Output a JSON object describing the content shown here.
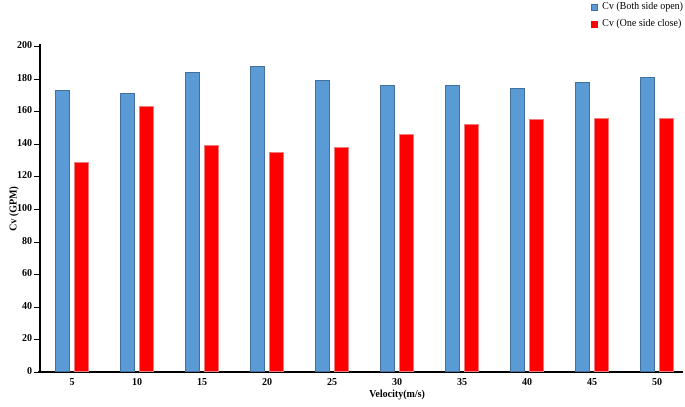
{
  "chart_data": {
    "type": "bar",
    "categories": [
      "5",
      "10",
      "15",
      "20",
      "25",
      "30",
      "35",
      "40",
      "45",
      "50"
    ],
    "series": [
      {
        "name": "Cv (Both side open)",
        "fill_color": "#5B9BD5",
        "border_color": "#41719C",
        "values": [
          173,
          171,
          184,
          188,
          179,
          176,
          176,
          174,
          178,
          181
        ]
      },
      {
        "name": "Cv (One side close)",
        "fill_color": "#FF0000",
        "border_color": "#F07C7C",
        "values": [
          129,
          163,
          139,
          135,
          138,
          146,
          152,
          155,
          156,
          156
        ]
      }
    ],
    "title": "",
    "xlabel": "Velocity(m/s)",
    "ylabel": "Cv (GPM)",
    "ylim": [
      0,
      200
    ],
    "ytick_step": 20,
    "grid": false,
    "legend_position": "top-right",
    "axis_color": "#000000"
  }
}
